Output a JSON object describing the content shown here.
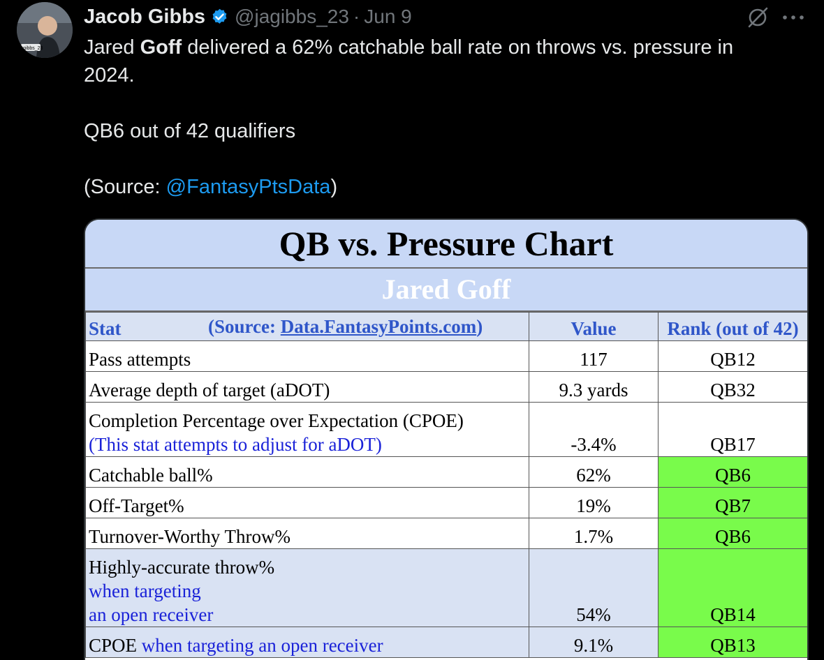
{
  "tweet": {
    "display_name": "Jacob Gibbs",
    "handle": "@jagibbs_23",
    "separator": "·",
    "date": "Jun 9",
    "avatar_caption": "gibbs_23",
    "text": {
      "line1_pre": "Jared ",
      "line1_bold": "Goff",
      "line1_post": " delivered a 62% catchable ball rate on throws vs. pressure in 2024.",
      "line2": "QB6 out of 42 qualifiers",
      "source_pre": "(Source: ",
      "source_mention": "@FantasyPtsData",
      "source_post": ")"
    }
  },
  "chart": {
    "title": "QB vs. Pressure Chart",
    "player": "Jared Goff",
    "header": {
      "stat": "Stat",
      "source_open": "(Source: ",
      "source_link": "Data.FantasyPoints.com",
      "source_close": ")",
      "value": "Value",
      "rank": "Rank (out of 42)"
    },
    "rows": [
      {
        "stat": "Pass attempts",
        "value": "117",
        "rank": "QB12"
      },
      {
        "stat": "Average depth of target (aDOT)",
        "value": "9.3 yards",
        "rank": "QB32"
      },
      {
        "stat": "Completion Percentage over Expectation (CPOE)",
        "note": "(This stat attempts to adjust for aDOT)",
        "value": "-3.4%",
        "rank": "QB17"
      },
      {
        "stat": "Catchable ball%",
        "value": "62%",
        "rank": "QB6"
      },
      {
        "stat": "Off-Target%",
        "value": "19%",
        "rank": "QB7"
      },
      {
        "stat": "Turnover-Worthy Throw%",
        "value": "1.7%",
        "rank": "QB6"
      },
      {
        "stat": "Highly-accurate throw%",
        "note1": "when targeting",
        "note2": "an open receiver",
        "value": "54%",
        "rank": "QB14"
      },
      {
        "stat": "CPOE",
        "note": "when targeting an open receiver",
        "value": "9.1%",
        "rank": "QB13"
      }
    ]
  },
  "colors": {
    "background": "#000000",
    "link": "#1d9bf0",
    "verified": "#1d9bf0",
    "chart_header_fill": "#c8d8f6",
    "rank_highlight": "#79fb4b"
  },
  "icons": [
    "verified-badge-icon",
    "grok-icon",
    "more-icon"
  ]
}
